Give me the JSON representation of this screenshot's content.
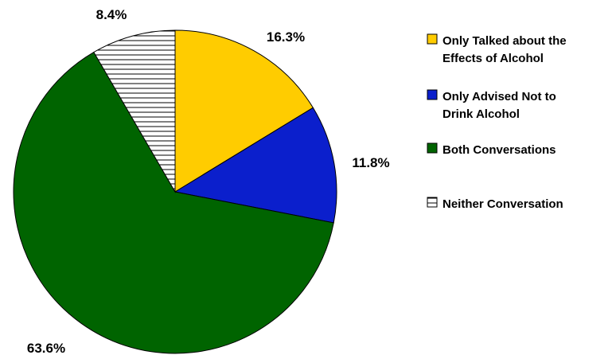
{
  "chart_data": {
    "type": "pie",
    "title": "",
    "start_angle_deg": 0,
    "direction": "clockwise",
    "slices": [
      {
        "key": "talked",
        "label_lines": [
          "Only Talked about the",
          "Effects of Alcohol"
        ],
        "value": 16.3,
        "value_label": "16.3%",
        "color": "#FFCC00",
        "pattern": "solid"
      },
      {
        "key": "advised",
        "label_lines": [
          "Only Advised Not to",
          "Drink Alcohol"
        ],
        "value": 11.8,
        "value_label": "11.8%",
        "color": "#0B1FCC",
        "pattern": "solid"
      },
      {
        "key": "both",
        "label_lines": [
          "Both Conversations"
        ],
        "value": 63.6,
        "value_label": "63.6%",
        "color": "#006400",
        "pattern": "solid"
      },
      {
        "key": "neither",
        "label_lines": [
          "Neither Conversation"
        ],
        "value": 8.4,
        "value_label": "8.4%",
        "color": "#FFFFFF",
        "pattern": "horizontal-stripes"
      }
    ],
    "legend": {
      "position": "right"
    }
  }
}
